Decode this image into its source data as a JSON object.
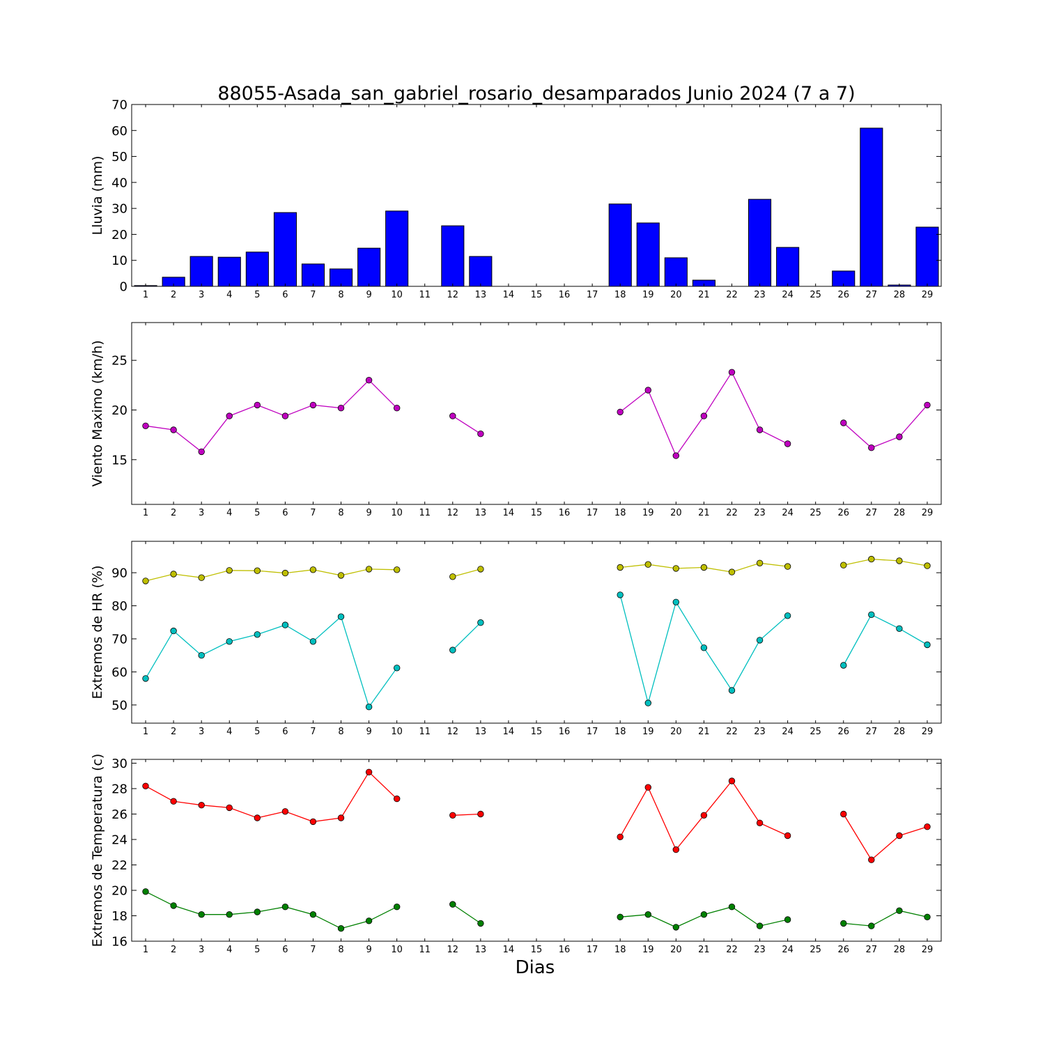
{
  "figure": {
    "title": "88055-Asada_san_gabriel_rosario_desamparados Junio 2024  (7 a 7)",
    "xlabel": "Dias"
  },
  "chart_data": [
    {
      "type": "bar",
      "ylabel": "Lluvia (mm)",
      "xlim": [
        0.5,
        29.5
      ],
      "ylim": [
        0,
        70
      ],
      "yticks": [
        0,
        10,
        20,
        30,
        40,
        50,
        60,
        70
      ],
      "categories": [
        1,
        2,
        3,
        4,
        5,
        6,
        7,
        8,
        9,
        10,
        11,
        12,
        13,
        14,
        15,
        16,
        17,
        18,
        19,
        20,
        21,
        22,
        23,
        24,
        25,
        26,
        27,
        28,
        29
      ],
      "xtick_labels": [
        "1",
        "2",
        "3",
        "4",
        "5",
        "6",
        "7",
        "8",
        "9",
        "10",
        "11",
        "12",
        "13",
        "14",
        "15",
        "16",
        "17",
        "18",
        "19",
        "20",
        "21",
        "22",
        "23",
        "24",
        "25",
        "26",
        "27",
        "28",
        "29"
      ],
      "values": [
        0.3,
        3.5,
        11.5,
        11.2,
        13.2,
        28.4,
        8.6,
        6.7,
        14.7,
        29.0,
        0,
        23.3,
        11.5,
        0,
        0,
        0,
        0,
        31.7,
        24.4,
        11.0,
        2.4,
        0,
        33.5,
        15.0,
        0,
        5.9,
        60.9,
        0.5,
        22.8
      ],
      "color": "#0000ff",
      "grid": false
    },
    {
      "type": "line",
      "ylabel": "Viento Maximo (km/h)",
      "xlim": [
        0.5,
        29.5
      ],
      "ylim": [
        10.5,
        28.8
      ],
      "yticks": [
        15,
        20,
        25
      ],
      "xtick_labels": [
        "1",
        "2",
        "3",
        "4",
        "5",
        "6",
        "7",
        "8",
        "9",
        "10",
        "11",
        "12",
        "13",
        "14",
        "15",
        "16",
        "17",
        "18",
        "19",
        "20",
        "21",
        "22",
        "23",
        "24",
        "25",
        "26",
        "27",
        "28",
        "29"
      ],
      "series": [
        {
          "color": "#bf00bf",
          "x": [
            1,
            2,
            3,
            4,
            5,
            6,
            7,
            8,
            9,
            10,
            11,
            12,
            13,
            14,
            15,
            16,
            17,
            18,
            19,
            20,
            21,
            22,
            23,
            24,
            25,
            26,
            27,
            28,
            29
          ],
          "y": [
            18.4,
            18.0,
            15.8,
            19.4,
            20.5,
            19.4,
            20.5,
            20.2,
            23.0,
            20.2,
            null,
            19.4,
            17.6,
            null,
            null,
            null,
            null,
            19.8,
            22.0,
            15.4,
            19.4,
            23.8,
            18.0,
            16.6,
            null,
            18.7,
            16.2,
            17.3,
            20.5
          ]
        }
      ],
      "grid": false
    },
    {
      "type": "line",
      "ylabel": "Extremos de HR (%)",
      "xlim": [
        0.5,
        29.5
      ],
      "ylim": [
        44.5,
        99.5
      ],
      "yticks": [
        50,
        60,
        70,
        80,
        90
      ],
      "xtick_labels": [
        "1",
        "2",
        "3",
        "4",
        "5",
        "6",
        "7",
        "8",
        "9",
        "10",
        "11",
        "12",
        "13",
        "14",
        "15",
        "16",
        "17",
        "18",
        "19",
        "20",
        "21",
        "22",
        "23",
        "24",
        "25",
        "26",
        "27",
        "28",
        "29"
      ],
      "series": [
        {
          "color": "#bfbf00",
          "x": [
            1,
            2,
            3,
            4,
            5,
            6,
            7,
            8,
            9,
            10,
            11,
            12,
            13,
            14,
            15,
            16,
            17,
            18,
            19,
            20,
            21,
            22,
            23,
            24,
            25,
            26,
            27,
            28,
            29
          ],
          "y": [
            87.5,
            89.6,
            88.5,
            90.7,
            90.6,
            89.9,
            90.9,
            89.2,
            91.1,
            90.9,
            null,
            88.8,
            91.1,
            null,
            null,
            null,
            null,
            91.6,
            92.5,
            91.3,
            91.6,
            90.2,
            92.9,
            91.9,
            null,
            92.3,
            94.1,
            93.6,
            92.1
          ]
        },
        {
          "color": "#00bfbf",
          "x": [
            1,
            2,
            3,
            4,
            5,
            6,
            7,
            8,
            9,
            10,
            11,
            12,
            13,
            14,
            15,
            16,
            17,
            18,
            19,
            20,
            21,
            22,
            23,
            24,
            25,
            26,
            27,
            28,
            29
          ],
          "y": [
            58.0,
            72.4,
            65.0,
            69.2,
            71.3,
            74.2,
            69.2,
            76.7,
            49.4,
            61.2,
            null,
            66.6,
            74.9,
            null,
            null,
            null,
            null,
            83.3,
            50.6,
            81.1,
            67.3,
            54.4,
            69.6,
            77.0,
            null,
            62.0,
            77.3,
            73.1,
            68.2
          ]
        }
      ],
      "grid": false
    },
    {
      "type": "line",
      "ylabel": "Extremos de Temperatura (c)",
      "xlim": [
        0.5,
        29.5
      ],
      "ylim": [
        16,
        30.3
      ],
      "yticks": [
        16,
        18,
        20,
        22,
        24,
        26,
        28,
        30
      ],
      "xtick_labels": [
        "1",
        "2",
        "3",
        "4",
        "5",
        "6",
        "7",
        "8",
        "9",
        "10",
        "11",
        "12",
        "13",
        "14",
        "15",
        "16",
        "17",
        "18",
        "19",
        "20",
        "21",
        "22",
        "23",
        "24",
        "25",
        "26",
        "27",
        "28",
        "29"
      ],
      "series": [
        {
          "color": "#ff0000",
          "x": [
            1,
            2,
            3,
            4,
            5,
            6,
            7,
            8,
            9,
            10,
            11,
            12,
            13,
            14,
            15,
            16,
            17,
            18,
            19,
            20,
            21,
            22,
            23,
            24,
            25,
            26,
            27,
            28,
            29
          ],
          "y": [
            28.2,
            27.0,
            26.7,
            26.5,
            25.7,
            26.2,
            25.4,
            25.7,
            29.3,
            27.2,
            null,
            25.9,
            26.0,
            null,
            null,
            null,
            null,
            24.2,
            28.1,
            23.2,
            25.9,
            28.6,
            25.3,
            24.3,
            null,
            26.0,
            22.4,
            24.3,
            25.0
          ]
        },
        {
          "color": "#008000",
          "x": [
            1,
            2,
            3,
            4,
            5,
            6,
            7,
            8,
            9,
            10,
            11,
            12,
            13,
            14,
            15,
            16,
            17,
            18,
            19,
            20,
            21,
            22,
            23,
            24,
            25,
            26,
            27,
            28,
            29
          ],
          "y": [
            19.9,
            18.8,
            18.1,
            18.1,
            18.3,
            18.7,
            18.1,
            17.0,
            17.6,
            18.7,
            null,
            18.9,
            17.4,
            null,
            null,
            null,
            null,
            17.9,
            18.1,
            17.1,
            18.1,
            18.7,
            17.2,
            17.7,
            null,
            17.4,
            17.2,
            18.4,
            17.9
          ]
        }
      ],
      "grid": false
    }
  ]
}
